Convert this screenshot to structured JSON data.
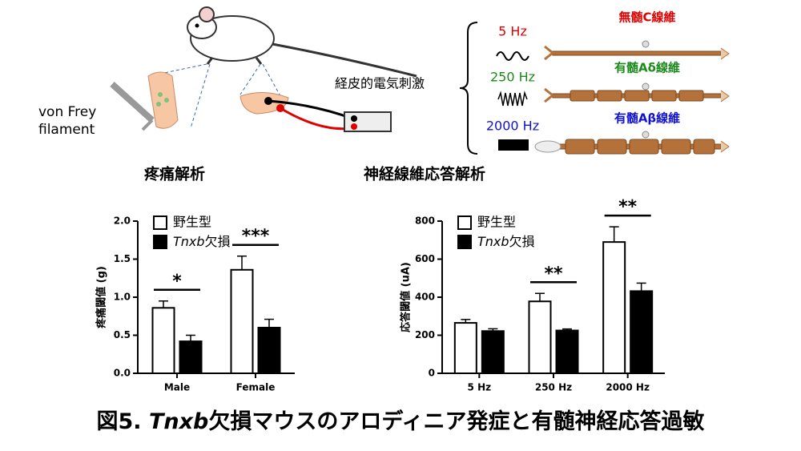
{
  "illustration": {
    "von_frey": [
      "von Frey",
      "filament"
    ],
    "stimulation": "経皮的電気刺激",
    "frequencies": [
      {
        "label": "5 Hz",
        "color": "#e00000"
      },
      {
        "label": "250 Hz",
        "color": "#1a8a1a"
      },
      {
        "label": "2000 Hz",
        "color": "#1010d0"
      }
    ],
    "fibers": [
      {
        "label": "無髄C線維",
        "color": "#e00000"
      },
      {
        "label": "有髄Aδ線維",
        "color": "#1a8a1a"
      },
      {
        "label": "有髄Aβ線維",
        "color": "#1010d0"
      }
    ]
  },
  "chart_data": [
    {
      "type": "bar",
      "title": "疼痛解析",
      "y_label": "疼痛閾値 (g)",
      "categories": [
        "Male",
        "Female"
      ],
      "series": [
        {
          "name": "野生型",
          "color": "#ffffff",
          "values": [
            0.86,
            1.36
          ],
          "errors": [
            0.09,
            0.18
          ]
        },
        {
          "name": "Tnxb欠損",
          "color": "#000000",
          "values": [
            0.42,
            0.6
          ],
          "errors": [
            0.08,
            0.11
          ]
        }
      ],
      "significance": [
        "*",
        "***"
      ],
      "ylim": [
        0,
        2
      ],
      "yticks": [
        {
          "value": 0,
          "label": "0.0"
        },
        0.5,
        {
          "value": 1,
          "label": "1.0"
        },
        1.5,
        {
          "value": 2,
          "label": "2.0"
        }
      ],
      "legend": "upper left"
    },
    {
      "type": "bar",
      "title": "神経線維応答解析",
      "y_label": "応答閾値 (uA)",
      "categories": [
        "5 Hz",
        "250 Hz",
        "2000 Hz"
      ],
      "series": [
        {
          "name": "野生型",
          "color": "#ffffff",
          "values": [
            265,
            378,
            690
          ],
          "errors": [
            18,
            42,
            80
          ]
        },
        {
          "name": "Tnxb欠損",
          "color": "#000000",
          "values": [
            222,
            225,
            432
          ],
          "errors": [
            12,
            8,
            42
          ]
        }
      ],
      "significance": [
        null,
        "**",
        "**"
      ],
      "ylim": [
        0,
        800
      ],
      "yticks": [
        0,
        200,
        400,
        600,
        800
      ],
      "legend": "upper left"
    }
  ],
  "caption": "図5. Tnxb欠損マウスのアロディニア発症と有髄神経応答過敏"
}
